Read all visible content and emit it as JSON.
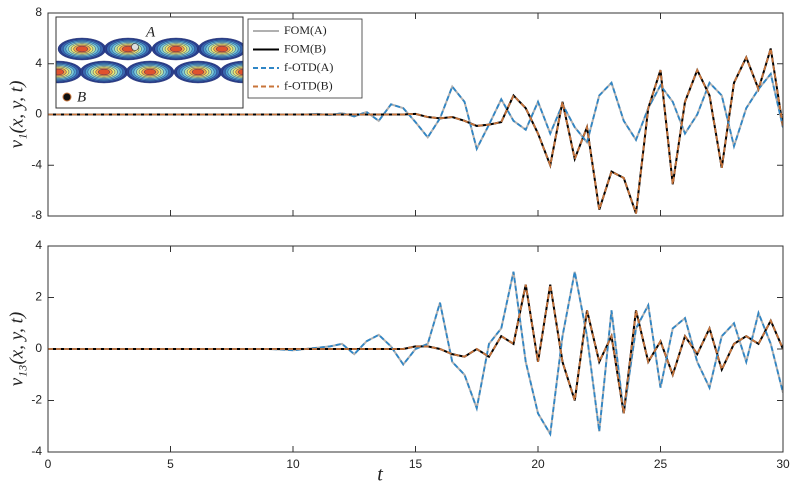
{
  "chart_data": [
    {
      "type": "line",
      "ylabel": "v₁(x, y, t)",
      "annotations": [
        "A",
        "B"
      ],
      "x": [
        0,
        0.5,
        1,
        1.5,
        2,
        2.5,
        3,
        3.5,
        4,
        4.5,
        5,
        5.5,
        6,
        6.5,
        7,
        7.5,
        8,
        8.5,
        9,
        9.5,
        10,
        10.5,
        11,
        11.5,
        12,
        12.5,
        13,
        13.5,
        14,
        14.5,
        15,
        15.5,
        16,
        16.5,
        17,
        17.5,
        18,
        18.5,
        19,
        19.5,
        20,
        20.5,
        21,
        21.5,
        22,
        22.5,
        23,
        23.5,
        24,
        24.5,
        25,
        25.5,
        26,
        26.5,
        27,
        27.5,
        28,
        28.5,
        29,
        29.5,
        30
      ],
      "xlim": [
        0,
        30
      ],
      "xticks": [
        0,
        5,
        10,
        15,
        20,
        25,
        30
      ],
      "ylim": [
        -8,
        8
      ],
      "yticks": [
        -8,
        -4,
        0,
        4,
        8
      ],
      "series": [
        {
          "name": "FOM(A)",
          "color": "#b0b0b0",
          "dashed": false,
          "values": [
            0,
            0,
            0,
            0,
            0,
            0,
            0,
            0,
            0,
            0,
            0,
            0,
            0,
            0,
            0,
            0,
            0,
            0,
            0,
            0,
            0,
            0,
            0.05,
            -0.05,
            0.1,
            -0.15,
            0.2,
            -0.5,
            0.8,
            0.5,
            -0.6,
            -1.8,
            -0.3,
            2.2,
            1.0,
            -2.7,
            -0.8,
            1.2,
            -0.5,
            -1.2,
            1.0,
            -1.5,
            0.8,
            -1.0,
            -2.2,
            1.5,
            2.5,
            -0.5,
            -2.0,
            0.5,
            2.3,
            1.0,
            -1.5,
            0.0,
            2.5,
            1.5,
            -2.5,
            0.5,
            2.0,
            3.2,
            -1.0
          ]
        },
        {
          "name": "FOM(B)",
          "color": "#000000",
          "dashed": false,
          "values": [
            0,
            0,
            0,
            0,
            0,
            0,
            0,
            0,
            0,
            0,
            0,
            0,
            0,
            0,
            0,
            0,
            0,
            0,
            0,
            0,
            0,
            0,
            0,
            0,
            0,
            0,
            0,
            0,
            0,
            0,
            0.05,
            -0.2,
            -0.3,
            -0.2,
            -0.5,
            -0.9,
            -0.8,
            -0.6,
            1.5,
            0.5,
            -1.5,
            -4.0,
            1.0,
            -3.5,
            -1.0,
            -7.5,
            -4.5,
            -5.0,
            -7.8,
            0.5,
            3.5,
            -5.5,
            1.0,
            3.5,
            1.5,
            -4.2,
            2.5,
            4.5,
            2.0,
            5.2,
            -1.0
          ]
        },
        {
          "name": "f-OTD(A)",
          "color": "#2f86c6",
          "dashed": true,
          "values": [
            0,
            0,
            0,
            0,
            0,
            0,
            0,
            0,
            0,
            0,
            0,
            0,
            0,
            0,
            0,
            0,
            0,
            0,
            0,
            0,
            0,
            0,
            0.05,
            -0.05,
            0.1,
            -0.15,
            0.2,
            -0.5,
            0.8,
            0.5,
            -0.6,
            -1.8,
            -0.3,
            2.2,
            1.0,
            -2.7,
            -0.8,
            1.2,
            -0.5,
            -1.2,
            1.0,
            -1.5,
            0.8,
            -1.0,
            -2.2,
            1.5,
            2.5,
            -0.5,
            -2.0,
            0.5,
            2.3,
            1.0,
            -1.5,
            0.0,
            2.5,
            1.5,
            -2.5,
            0.5,
            2.0,
            3.2,
            -1.0
          ]
        },
        {
          "name": "f-OTD(B)",
          "color": "#c8743a",
          "dashed": true,
          "values": [
            0,
            0,
            0,
            0,
            0,
            0,
            0,
            0,
            0,
            0,
            0,
            0,
            0,
            0,
            0,
            0,
            0,
            0,
            0,
            0,
            0,
            0,
            0,
            0,
            0,
            0,
            0,
            0,
            0,
            0,
            0.05,
            -0.2,
            -0.3,
            -0.2,
            -0.5,
            -0.9,
            -0.8,
            -0.6,
            1.5,
            0.5,
            -1.5,
            -4.0,
            1.0,
            -3.5,
            -1.0,
            -7.5,
            -4.5,
            -5.0,
            -7.8,
            0.5,
            3.5,
            -5.5,
            1.0,
            3.5,
            1.5,
            -4.2,
            2.5,
            4.5,
            2.0,
            5.2,
            -1.0
          ]
        }
      ]
    },
    {
      "type": "line",
      "ylabel": "v₁₃(x, y, t)",
      "xlabel": "t",
      "x": [
        0,
        0.5,
        1,
        1.5,
        2,
        2.5,
        3,
        3.5,
        4,
        4.5,
        5,
        5.5,
        6,
        6.5,
        7,
        7.5,
        8,
        8.5,
        9,
        9.5,
        10,
        10.5,
        11,
        11.5,
        12,
        12.5,
        13,
        13.5,
        14,
        14.5,
        15,
        15.5,
        16,
        16.5,
        17,
        17.5,
        18,
        18.5,
        19,
        19.5,
        20,
        20.5,
        21,
        21.5,
        22,
        22.5,
        23,
        23.5,
        24,
        24.5,
        25,
        25.5,
        26,
        26.5,
        27,
        27.5,
        28,
        28.5,
        29,
        29.5,
        30
      ],
      "xlim": [
        0,
        30
      ],
      "xticks": [
        0,
        5,
        10,
        15,
        20,
        25,
        30
      ],
      "ylim": [
        -4,
        4
      ],
      "yticks": [
        -4,
        -2,
        0,
        2,
        4
      ],
      "series": [
        {
          "color": "#b0b0b0",
          "dashed": false,
          "values": [
            0,
            0,
            0,
            0,
            0,
            0,
            0,
            0,
            0,
            0,
            0,
            0,
            0,
            0,
            0,
            0,
            0,
            0,
            0,
            -0.02,
            -0.05,
            0,
            0.05,
            0.1,
            0.2,
            -0.2,
            0.3,
            0.55,
            0.1,
            -0.6,
            0,
            0.2,
            1.8,
            -0.5,
            -1.0,
            -2.3,
            0.2,
            0.8,
            3.0,
            -0.5,
            -2.5,
            -3.3,
            0.5,
            3.0,
            0.5,
            -3.2,
            1.5,
            -2.5,
            0.8,
            1.7,
            -1.5,
            0.8,
            1.2,
            -0.5,
            -1.5,
            0.5,
            1.0,
            -0.5,
            1.4,
            0.2,
            -1.7
          ]
        },
        {
          "color": "#000000",
          "dashed": false,
          "values": [
            0,
            0,
            0,
            0,
            0,
            0,
            0,
            0,
            0,
            0,
            0,
            0,
            0,
            0,
            0,
            0,
            0,
            0,
            0,
            0,
            0,
            0,
            0,
            0,
            0,
            0,
            0,
            0,
            0,
            0,
            0.1,
            0.1,
            0,
            -0.2,
            -0.3,
            0,
            -0.3,
            0.5,
            0.2,
            2.5,
            -0.5,
            2.5,
            -0.5,
            -2.0,
            1.5,
            -0.5,
            0.5,
            -2.5,
            1.5,
            -0.5,
            0.3,
            -1.0,
            0.5,
            -0.2,
            0.8,
            -0.8,
            0.2,
            0.5,
            0.2,
            1.1,
            0.0
          ]
        },
        {
          "color": "#2f86c6",
          "dashed": true,
          "values": [
            0,
            0,
            0,
            0,
            0,
            0,
            0,
            0,
            0,
            0,
            0,
            0,
            0,
            0,
            0,
            0,
            0,
            0,
            0,
            -0.02,
            -0.05,
            0,
            0.05,
            0.1,
            0.2,
            -0.2,
            0.3,
            0.55,
            0.1,
            -0.6,
            0,
            0.2,
            1.8,
            -0.5,
            -1.0,
            -2.3,
            0.2,
            0.8,
            3.0,
            -0.5,
            -2.5,
            -3.3,
            0.5,
            3.0,
            0.5,
            -3.2,
            1.5,
            -2.5,
            0.8,
            1.7,
            -1.5,
            0.8,
            1.2,
            -0.5,
            -1.5,
            0.5,
            1.0,
            -0.5,
            1.4,
            0.2,
            -1.7
          ]
        },
        {
          "color": "#c8743a",
          "dashed": true,
          "values": [
            0,
            0,
            0,
            0,
            0,
            0,
            0,
            0,
            0,
            0,
            0,
            0,
            0,
            0,
            0,
            0,
            0,
            0,
            0,
            0,
            0,
            0,
            0,
            0,
            0,
            0,
            0,
            0,
            0,
            0,
            0.1,
            0.1,
            0,
            -0.2,
            -0.3,
            0,
            -0.3,
            0.5,
            0.2,
            2.5,
            -0.5,
            2.5,
            -0.5,
            -2.0,
            1.5,
            -0.5,
            0.5,
            -2.5,
            1.5,
            -0.5,
            0.3,
            -1.0,
            0.5,
            -0.2,
            0.8,
            -0.8,
            0.2,
            0.5,
            0.2,
            1.1,
            0.0
          ]
        }
      ]
    }
  ]
}
